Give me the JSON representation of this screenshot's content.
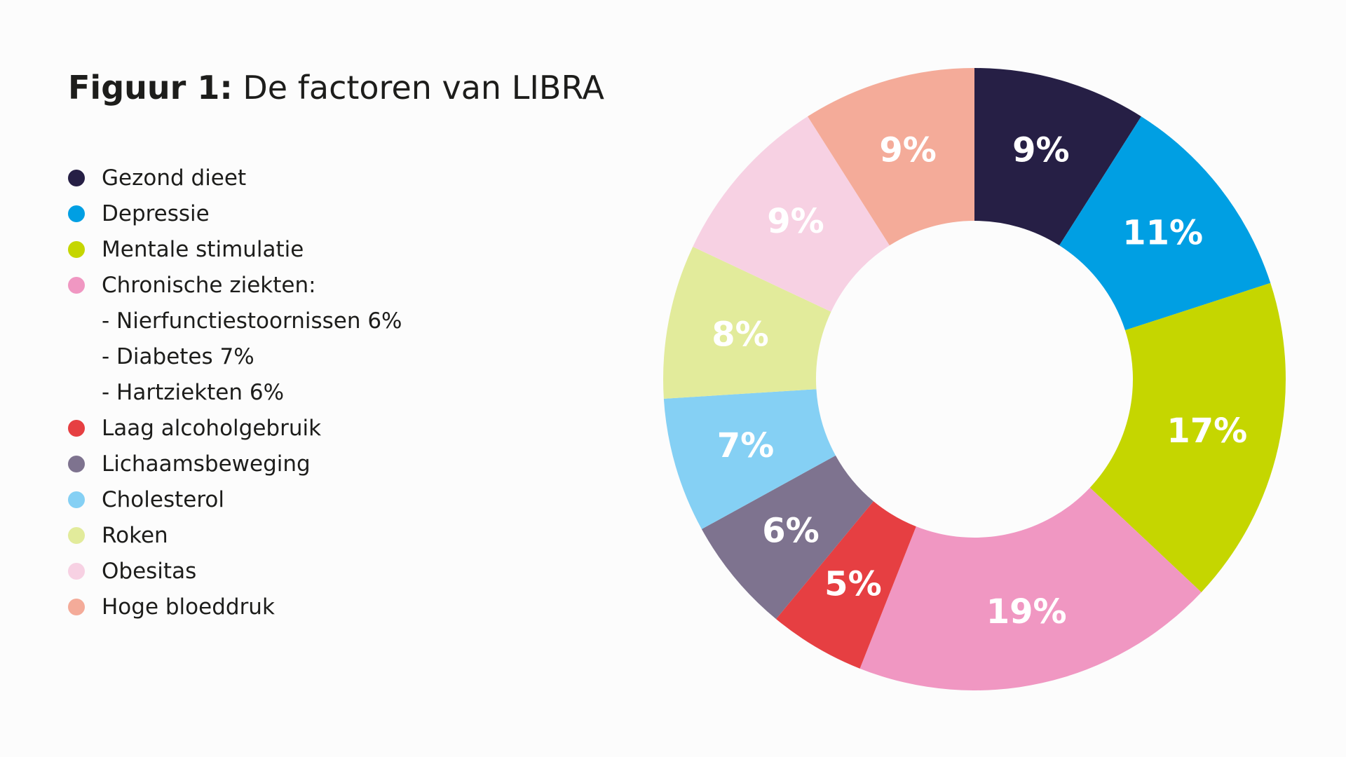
{
  "title": {
    "prefix": "Figuur 1:",
    "text": "De factoren van LIBRA"
  },
  "legend": {
    "items": [
      {
        "label": "Gezond dieet",
        "color": "#261f45"
      },
      {
        "label": "Depressie",
        "color": "#009fe3"
      },
      {
        "label": "Mentale stimulatie",
        "color": "#c5d600"
      },
      {
        "label": "Chronische ziekten:",
        "color": "#f097c2"
      },
      {
        "label": "- Nierfunctiestoornissen 6%",
        "sub": true
      },
      {
        "label": "- Diabetes 7%",
        "sub": true
      },
      {
        "label": "- Hartziekten 6%",
        "sub": true
      },
      {
        "label": "Laag alcoholgebruik",
        "color": "#e63f42"
      },
      {
        "label": "Lichaamsbeweging",
        "color": "#7e738f"
      },
      {
        "label": "Cholesterol",
        "color": "#85d0f4"
      },
      {
        "label": "Roken",
        "color": "#e2eb9b"
      },
      {
        "label": "Obesitas",
        "color": "#f7d1e3"
      },
      {
        "label": "Hoge bloeddruk",
        "color": "#f4ab99"
      }
    ]
  },
  "chart_data": {
    "type": "pie",
    "donut": true,
    "title": "De factoren van LIBRA",
    "legend_position": "left",
    "slices": [
      {
        "label": "Gezond dieet",
        "value": 9,
        "display": "9%",
        "color": "#261f45"
      },
      {
        "label": "Depressie",
        "value": 11,
        "display": "11%",
        "color": "#009fe3"
      },
      {
        "label": "Mentale stimulatie",
        "value": 17,
        "display": "17%",
        "color": "#c5d600"
      },
      {
        "label": "Chronische ziekten",
        "value": 19,
        "display": "19%",
        "color": "#f097c2"
      },
      {
        "label": "Laag alcoholgebruik",
        "value": 5,
        "display": "5%",
        "color": "#e63f42"
      },
      {
        "label": "Lichaamsbeweging",
        "value": 6,
        "display": "6%",
        "color": "#7e738f"
      },
      {
        "label": "Cholesterol",
        "value": 7,
        "display": "7%",
        "color": "#85d0f4"
      },
      {
        "label": "Roken",
        "value": 8,
        "display": "8%",
        "color": "#e2eb9b"
      },
      {
        "label": "Obesitas",
        "value": 9,
        "display": "9%",
        "color": "#f7d1e3"
      },
      {
        "label": "Hoge bloeddruk",
        "value": 9,
        "display": "9%",
        "color": "#f4ab99"
      }
    ]
  }
}
